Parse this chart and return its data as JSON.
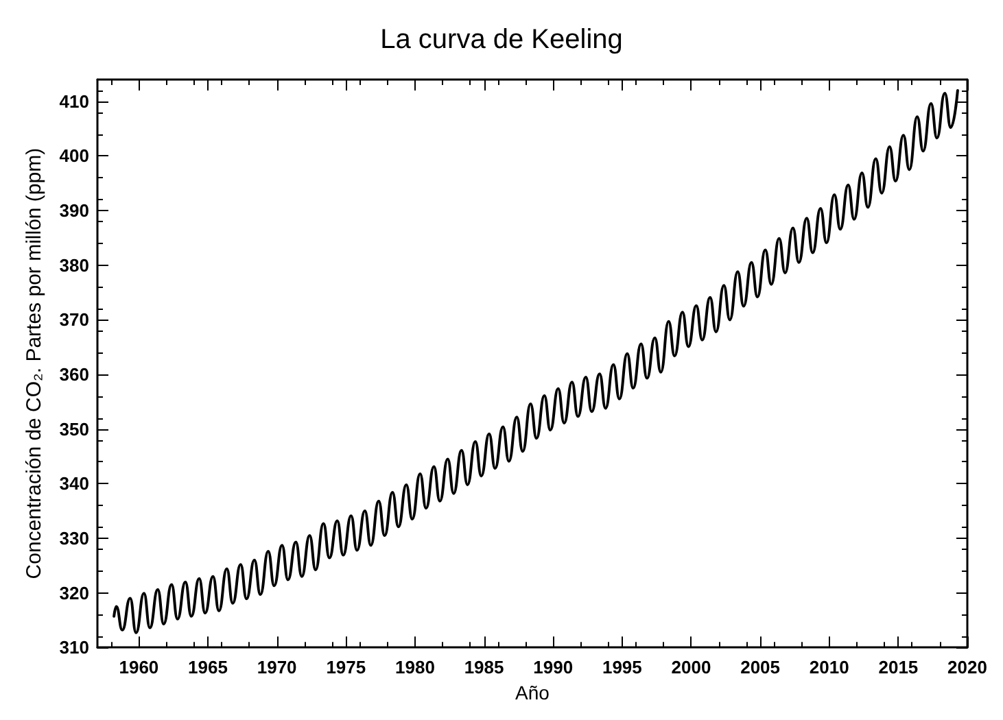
{
  "chart_data": {
    "type": "line",
    "title": "La curva de Keeling",
    "xlabel": "Año",
    "ylabel": "Concentración de CO₂. Partes por millón (ppm)",
    "xlim": [
      1957,
      2020
    ],
    "xticks": [
      1960,
      1965,
      1970,
      1975,
      1980,
      1985,
      1990,
      1995,
      2000,
      2005,
      2010,
      2015,
      2020
    ],
    "ylim": [
      310,
      414
    ],
    "yticks": [
      310,
      320,
      330,
      340,
      350,
      360,
      370,
      380,
      390,
      400,
      410
    ],
    "grid": false,
    "marker": "none",
    "line_style": "solid",
    "series": [
      {
        "color": "#000000",
        "x": [
          1958.2,
          1958.37,
          1958.8,
          1959.37,
          1959.8,
          1960.37,
          1960.8,
          1961.37,
          1961.8,
          1962.37,
          1962.8,
          1963.37,
          1963.8,
          1964.37,
          1964.8,
          1965.37,
          1965.8,
          1966.37,
          1966.8,
          1967.37,
          1967.8,
          1968.37,
          1968.8,
          1969.37,
          1969.8,
          1970.37,
          1970.8,
          1971.37,
          1971.8,
          1972.37,
          1972.8,
          1973.37,
          1973.8,
          1974.37,
          1974.8,
          1975.37,
          1975.8,
          1976.37,
          1976.8,
          1977.37,
          1977.8,
          1978.37,
          1978.8,
          1979.37,
          1979.8,
          1980.37,
          1980.8,
          1981.37,
          1981.8,
          1982.37,
          1982.8,
          1983.37,
          1983.8,
          1984.37,
          1984.8,
          1985.37,
          1985.8,
          1986.37,
          1986.8,
          1987.37,
          1987.8,
          1988.37,
          1988.8,
          1989.37,
          1989.8,
          1990.37,
          1990.8,
          1991.37,
          1991.8,
          1992.37,
          1992.8,
          1993.37,
          1993.8,
          1994.37,
          1994.8,
          1995.37,
          1995.8,
          1996.37,
          1996.8,
          1997.37,
          1997.8,
          1998.37,
          1998.8,
          1999.37,
          1999.8,
          2000.37,
          2000.8,
          2001.37,
          2001.8,
          2002.37,
          2002.8,
          2003.37,
          2003.8,
          2004.37,
          2004.8,
          2005.37,
          2005.8,
          2006.37,
          2006.8,
          2007.37,
          2007.8,
          2008.37,
          2008.8,
          2009.37,
          2009.8,
          2010.37,
          2010.8,
          2011.37,
          2011.8,
          2012.37,
          2012.8,
          2013.37,
          2013.8,
          2014.37,
          2014.8,
          2015.37,
          2015.8,
          2016.37,
          2016.8,
          2017.37,
          2017.8,
          2018.37,
          2018.8,
          2019.3
        ],
        "values": [
          315.7,
          317.5,
          313.2,
          319.0,
          312.7,
          319.9,
          313.6,
          320.6,
          314.3,
          321.5,
          315.2,
          322.0,
          315.7,
          322.6,
          316.3,
          323.0,
          316.7,
          324.4,
          318.1,
          325.2,
          318.9,
          326.0,
          319.7,
          327.6,
          321.3,
          328.7,
          322.4,
          329.3,
          323.0,
          330.5,
          324.2,
          332.7,
          326.4,
          333.2,
          326.9,
          334.1,
          327.8,
          335.0,
          328.7,
          336.8,
          330.5,
          338.4,
          332.1,
          339.8,
          333.5,
          341.8,
          335.5,
          343.1,
          336.8,
          344.5,
          338.2,
          346.1,
          339.8,
          347.7,
          341.4,
          349.1,
          342.8,
          350.4,
          344.1,
          352.2,
          345.9,
          354.6,
          348.3,
          356.1,
          349.8,
          357.4,
          351.1,
          358.6,
          352.3,
          359.5,
          353.2,
          360.1,
          353.8,
          361.8,
          355.5,
          363.8,
          357.5,
          365.6,
          359.3,
          366.7,
          360.4,
          369.7,
          363.4,
          371.4,
          365.1,
          372.6,
          366.3,
          374.1,
          367.8,
          376.3,
          370.0,
          378.8,
          372.5,
          380.5,
          374.2,
          382.8,
          376.5,
          384.9,
          378.6,
          386.8,
          380.5,
          388.6,
          382.3,
          390.4,
          384.1,
          392.9,
          386.6,
          394.7,
          388.4,
          396.9,
          390.6,
          399.5,
          393.2,
          401.7,
          395.4,
          403.8,
          397.5,
          407.2,
          400.9,
          409.6,
          403.3,
          411.5,
          405.2,
          412.0
        ]
      }
    ]
  }
}
